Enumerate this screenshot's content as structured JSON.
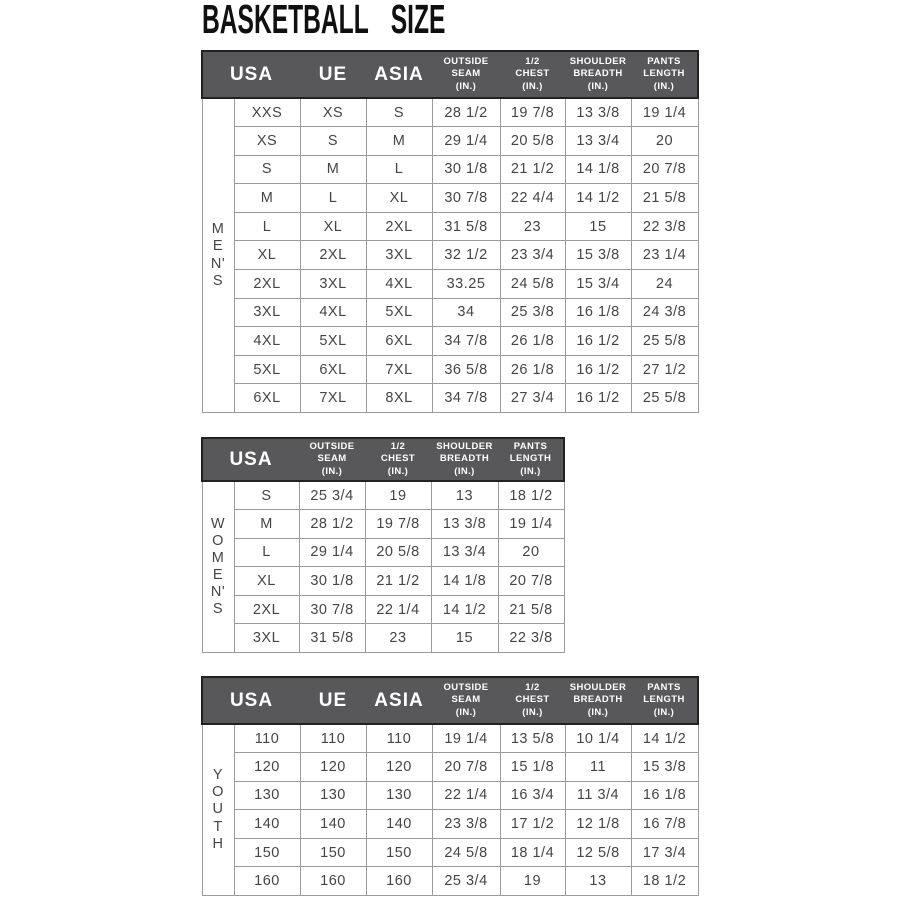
{
  "page_title": "BASKETBALL SIZE",
  "colors": {
    "header_bg": "#58585a",
    "header_text": "#ffffff",
    "header_border": "#222222",
    "body_text": "#454547",
    "grid_line": "#9b9b9b",
    "page_bg": "#ffffff"
  },
  "tables": [
    {
      "section": "MEN'S",
      "vertical_label": "M\nE\nN'\nS",
      "headers": [
        "USA",
        "UE",
        "ASIA",
        "OUTSIDE\nSEAM\n(IN.)",
        "1/2\nCHEST\n(IN.)",
        "SHOULDER\nBREADTH\n(IN.)",
        "PANTS\nLENGTH\n(IN.)"
      ],
      "rows": [
        [
          "XXS",
          "XS",
          "S",
          "28 1/2",
          "19 7/8",
          "13 3/8",
          "19 1/4"
        ],
        [
          "XS",
          "S",
          "M",
          "29 1/4",
          "20 5/8",
          "13 3/4",
          "20"
        ],
        [
          "S",
          "M",
          "L",
          "30 1/8",
          "21 1/2",
          "14 1/8",
          "20 7/8"
        ],
        [
          "M",
          "L",
          "XL",
          "30 7/8",
          "22 4/4",
          "14 1/2",
          "21 5/8"
        ],
        [
          "L",
          "XL",
          "2XL",
          "31 5/8",
          "23",
          "15",
          "22 3/8"
        ],
        [
          "XL",
          "2XL",
          "3XL",
          "32 1/2",
          "23 3/4",
          "15 3/8",
          "23 1/4"
        ],
        [
          "2XL",
          "3XL",
          "4XL",
          "33.25",
          "24 5/8",
          "15 3/4",
          "24"
        ],
        [
          "3XL",
          "4XL",
          "5XL",
          "34",
          "25 3/8",
          "16 1/8",
          "24 3/8"
        ],
        [
          "4XL",
          "5XL",
          "6XL",
          "34 7/8",
          "26 1/8",
          "16 1/2",
          "25 5/8"
        ],
        [
          "5XL",
          "6XL",
          "7XL",
          "36 5/8",
          "26 1/8",
          "16 1/2",
          "27 1/2"
        ],
        [
          "6XL",
          "7XL",
          "8XL",
          "34 7/8",
          "27 3/4",
          "16 1/2",
          "25 5/8"
        ]
      ]
    },
    {
      "section": "WOMEN'S",
      "vertical_label": "W\nO\nM\nE\nN'\nS",
      "headers": [
        "USA",
        "OUTSIDE\nSEAM\n(IN.)",
        "1/2\nCHEST\n(IN.)",
        "SHOULDER\nBREADTH\n(IN.)",
        "PANTS\nLENGTH\n(IN.)"
      ],
      "rows": [
        [
          "S",
          "25 3/4",
          "19",
          "13",
          "18 1/2"
        ],
        [
          "M",
          "28 1/2",
          "19 7/8",
          "13 3/8",
          "19 1/4"
        ],
        [
          "L",
          "29 1/4",
          "20 5/8",
          "13 3/4",
          "20"
        ],
        [
          "XL",
          "30 1/8",
          "21 1/2",
          "14 1/8",
          "20 7/8"
        ],
        [
          "2XL",
          "30 7/8",
          "22 1/4",
          "14 1/2",
          "21 5/8"
        ],
        [
          "3XL",
          "31 5/8",
          "23",
          "15",
          "22 3/8"
        ]
      ]
    },
    {
      "section": "YOUTH",
      "vertical_label": "Y\nO\nU\nT\nH",
      "headers": [
        "USA",
        "UE",
        "ASIA",
        "OUTSIDE\nSEAM\n(IN.)",
        "1/2\nCHEST\n(IN.)",
        "SHOULDER\nBREADTH\n(IN.)",
        "PANTS\nLENGTH\n(IN.)"
      ],
      "rows": [
        [
          "110",
          "110",
          "110",
          "19 1/4",
          "13 5/8",
          "10 1/4",
          "14 1/2"
        ],
        [
          "120",
          "120",
          "120",
          "20 7/8",
          "15 1/8",
          "11",
          "15 3/8"
        ],
        [
          "130",
          "130",
          "130",
          "22 1/4",
          "16 3/4",
          "11 3/4",
          "16 1/8"
        ],
        [
          "140",
          "140",
          "140",
          "23 3/8",
          "17 1/2",
          "12 1/8",
          "16 7/8"
        ],
        [
          "150",
          "150",
          "150",
          "24 5/8",
          "18 1/4",
          "12 5/8",
          "17 3/4"
        ],
        [
          "160",
          "160",
          "160",
          "25 3/4",
          "19",
          "13",
          "18 1/2"
        ]
      ]
    }
  ]
}
